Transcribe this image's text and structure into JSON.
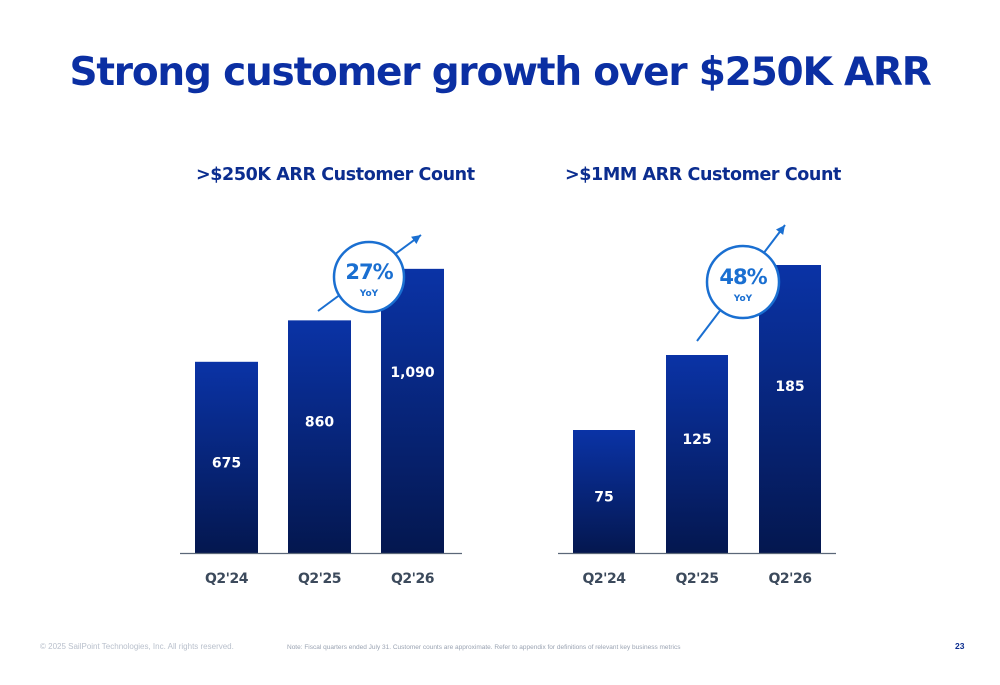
{
  "page": {
    "title": "Strong customer growth over $250K ARR",
    "footer_copyright": "© 2025 SailPoint Technologies, Inc. All rights reserved.",
    "footer_note": "Note: Fiscal quarters ended July 31.  Customer counts are approximate.  Refer to appendix for definitions of relevant key business metrics",
    "page_number": "23"
  },
  "colors": {
    "title": "#0b2fa3",
    "bar_top": "#0a33a6",
    "bar_bottom": "#04174f",
    "badge_accent": "#1a6fd1",
    "axis": "#5b6778",
    "tick_label": "#3c4a5c"
  },
  "chart_data": [
    {
      "type": "bar",
      "title": ">$250K ARR Customer Count",
      "categories": [
        "Q2'24",
        "Q2'25",
        "Q2'26"
      ],
      "values": [
        675,
        860,
        1090
      ],
      "value_labels": [
        "675",
        "860",
        "1,090"
      ],
      "xlabel": "",
      "ylabel": "",
      "grid": false,
      "annotation": {
        "value": "27%",
        "label": "YoY"
      }
    },
    {
      "type": "bar",
      "title": ">$1MM ARR Customer Count",
      "categories": [
        "Q2'24",
        "Q2'25",
        "Q2'26"
      ],
      "values": [
        75,
        125,
        185
      ],
      "value_labels": [
        "75",
        "125",
        "185"
      ],
      "xlabel": "",
      "ylabel": "",
      "grid": false,
      "annotation": {
        "value": "48%",
        "label": "YoY"
      }
    }
  ]
}
